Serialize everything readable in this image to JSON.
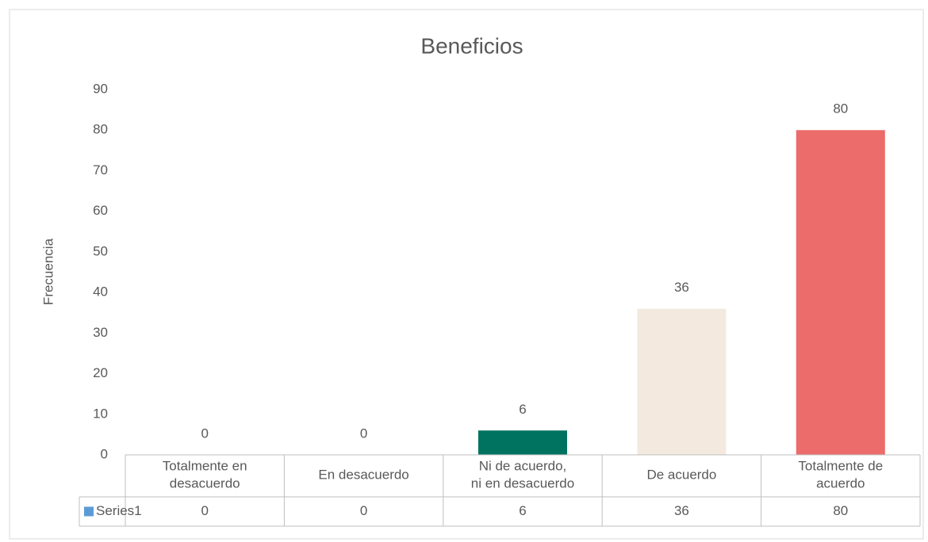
{
  "chart_data": {
    "type": "bar",
    "title": "Beneficios",
    "y_label": "Frecuencia",
    "categories": [
      "Totalmente en desacuerdo",
      "En desacuerdo",
      "Ni de acuerdo, ni en desacuerdo",
      "De acuerdo",
      "Totalmente de acuerdo"
    ],
    "series": [
      {
        "name": "Series1",
        "color": "#5b9bd5",
        "values": [
          0,
          0,
          6,
          36,
          80
        ],
        "colors": [
          "#5b9bd5",
          "#5b9bd5",
          "#007360",
          "#f3e9df",
          "#ec6b6b"
        ]
      }
    ],
    "ylim": [
      0,
      90
    ],
    "yticks": [
      0,
      10,
      20,
      30,
      40,
      50,
      60,
      70,
      80,
      90
    ],
    "grid": false,
    "data_table": true
  }
}
